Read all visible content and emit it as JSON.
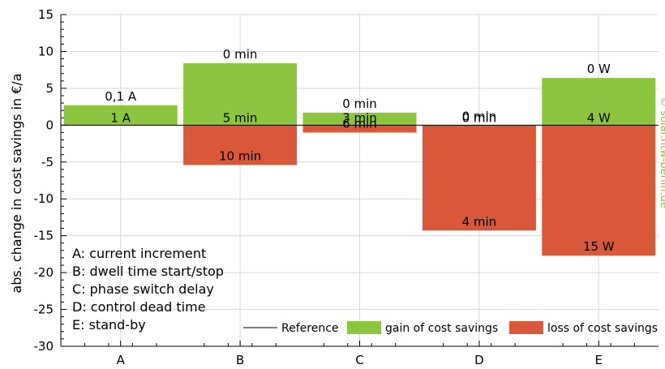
{
  "chart_data": {
    "type": "bar",
    "categories": [
      "A",
      "B",
      "C",
      "D",
      "E"
    ],
    "ylabel": "abs. change in cost savings in €/a",
    "ylim": [
      -30,
      15
    ],
    "yticks": [
      15,
      10,
      5,
      0,
      -5,
      -10,
      -15,
      -20,
      -25,
      -30
    ],
    "reference_value": 0,
    "grid": true,
    "legend_position": "bottom-right",
    "series": [
      {
        "name": "gain of cost savings",
        "color": "#8cc63f",
        "values": [
          2.7,
          8.4,
          1.7,
          0,
          6.4
        ],
        "labels": [
          "0,1 A",
          "0 min",
          "0 min",
          "0 min",
          "0 W"
        ]
      },
      {
        "name": "loss of cost savings",
        "color": "#d9583a",
        "values": [
          0,
          -5.4,
          -1.0,
          -14.3,
          -17.7
        ],
        "labels": [
          "1 A",
          "10 min",
          "6 min",
          "4 min",
          "15 W"
        ]
      }
    ],
    "baseline_labels": [
      "1 A",
      "5 min",
      "3 min",
      "0 min",
      "4 W"
    ],
    "legend": {
      "reference": "Reference",
      "gain": "gain of cost savings",
      "loss": "loss of cost savings"
    },
    "notes": [
      "A: current increment",
      "B: dwell time start/stop",
      "C: phase switch delay",
      "D: control dead time",
      "E: stand-by"
    ],
    "watermark": "© solar.htw-berlin.de"
  }
}
